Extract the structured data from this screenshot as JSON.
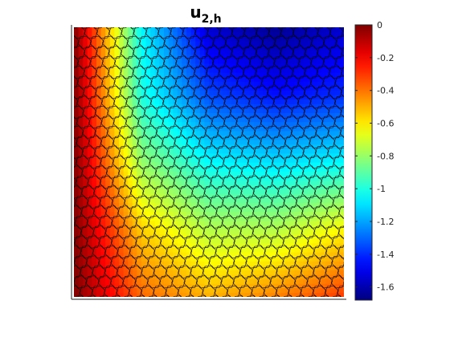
{
  "chart_data": {
    "type": "heatmap",
    "title": {
      "base": "u",
      "subscript": "2,h"
    },
    "xlabel": "",
    "ylabel": "",
    "x_range": [
      0,
      1
    ],
    "y_range": [
      0,
      1
    ],
    "axis_ticks": "none",
    "mesh": "polygonal (hexagonal-like) cells with black edges",
    "colormap": "jet",
    "colorbar": {
      "position": "right",
      "range": [
        -1.68,
        0
      ],
      "ticks": [
        0,
        -0.2,
        -0.4,
        -0.6,
        -0.8,
        -1,
        -1.2,
        -1.4,
        -1.6
      ],
      "tick_labels": [
        "0",
        "-0.2",
        "-0.4",
        "-0.6",
        "-0.8",
        "-1",
        "-1.2",
        "-1.4",
        "-1.6"
      ]
    },
    "field_samples": {
      "x": [
        0,
        0.25,
        0.5,
        0.75,
        1
      ],
      "y": [
        0,
        0.25,
        0.5,
        0.75,
        1
      ],
      "values_rows_bottom_to_top": [
        [
          0,
          -0.38,
          -0.5,
          -0.42,
          -0.3
        ],
        [
          0,
          -0.55,
          -0.75,
          -0.75,
          -0.62
        ],
        [
          0,
          -0.8,
          -1.05,
          -1.1,
          -1.05
        ],
        [
          0,
          -1.0,
          -1.35,
          -1.45,
          -1.4
        ],
        [
          0,
          -1.05,
          -1.55,
          -1.65,
          -1.55
        ]
      ]
    }
  }
}
